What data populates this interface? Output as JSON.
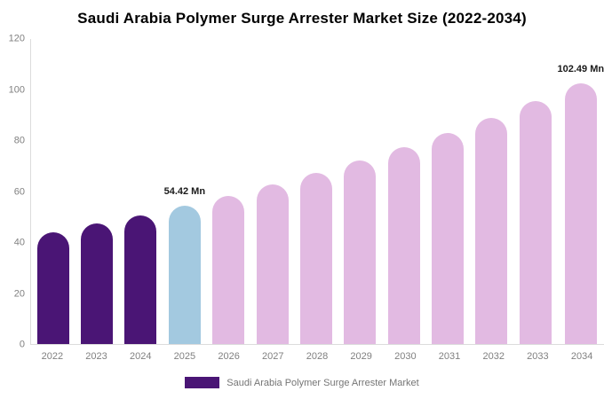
{
  "title": "Saudi Arabia Polymer Surge Arrester Market Size (2022-2034)",
  "colors": {
    "historical": "#4a1575",
    "current": "#a3c9e0",
    "forecast": "#e2bae2",
    "axis_text": "#808080",
    "axis_line": "#dcdcdc",
    "data_label": "#1a1a1a",
    "title_text": "#000000",
    "legend_text": "#757575"
  },
  "chart_data": {
    "type": "bar",
    "title": "Saudi Arabia Polymer Surge Arrester Market Size (2022-2034)",
    "xlabel": "",
    "ylabel": "",
    "ylim": [
      0,
      120
    ],
    "yticks": [
      0,
      20,
      40,
      60,
      80,
      100,
      120
    ],
    "grid": false,
    "legend_position": "bottom",
    "categories": [
      "2022",
      "2023",
      "2024",
      "2025",
      "2026",
      "2027",
      "2028",
      "2029",
      "2030",
      "2031",
      "2032",
      "2033",
      "2034"
    ],
    "series": [
      {
        "name": "Saudi Arabia Polymer Surge Arrester Market",
        "values": [
          44.07,
          47.28,
          50.72,
          54.42,
          58.39,
          62.64,
          67.21,
          72.11,
          77.36,
          83.0,
          89.05,
          95.54,
          102.49
        ]
      }
    ],
    "segments": {
      "historical": [
        "2022",
        "2023",
        "2024"
      ],
      "current": [
        "2025"
      ],
      "forecast": [
        "2026",
        "2027",
        "2028",
        "2029",
        "2030",
        "2031",
        "2032",
        "2033",
        "2034"
      ]
    },
    "value_labels": {
      "2025": "54.42 Mn",
      "2034": "102.49 Mn"
    }
  },
  "legend": {
    "label": "Saudi Arabia Polymer Surge Arrester Market"
  }
}
